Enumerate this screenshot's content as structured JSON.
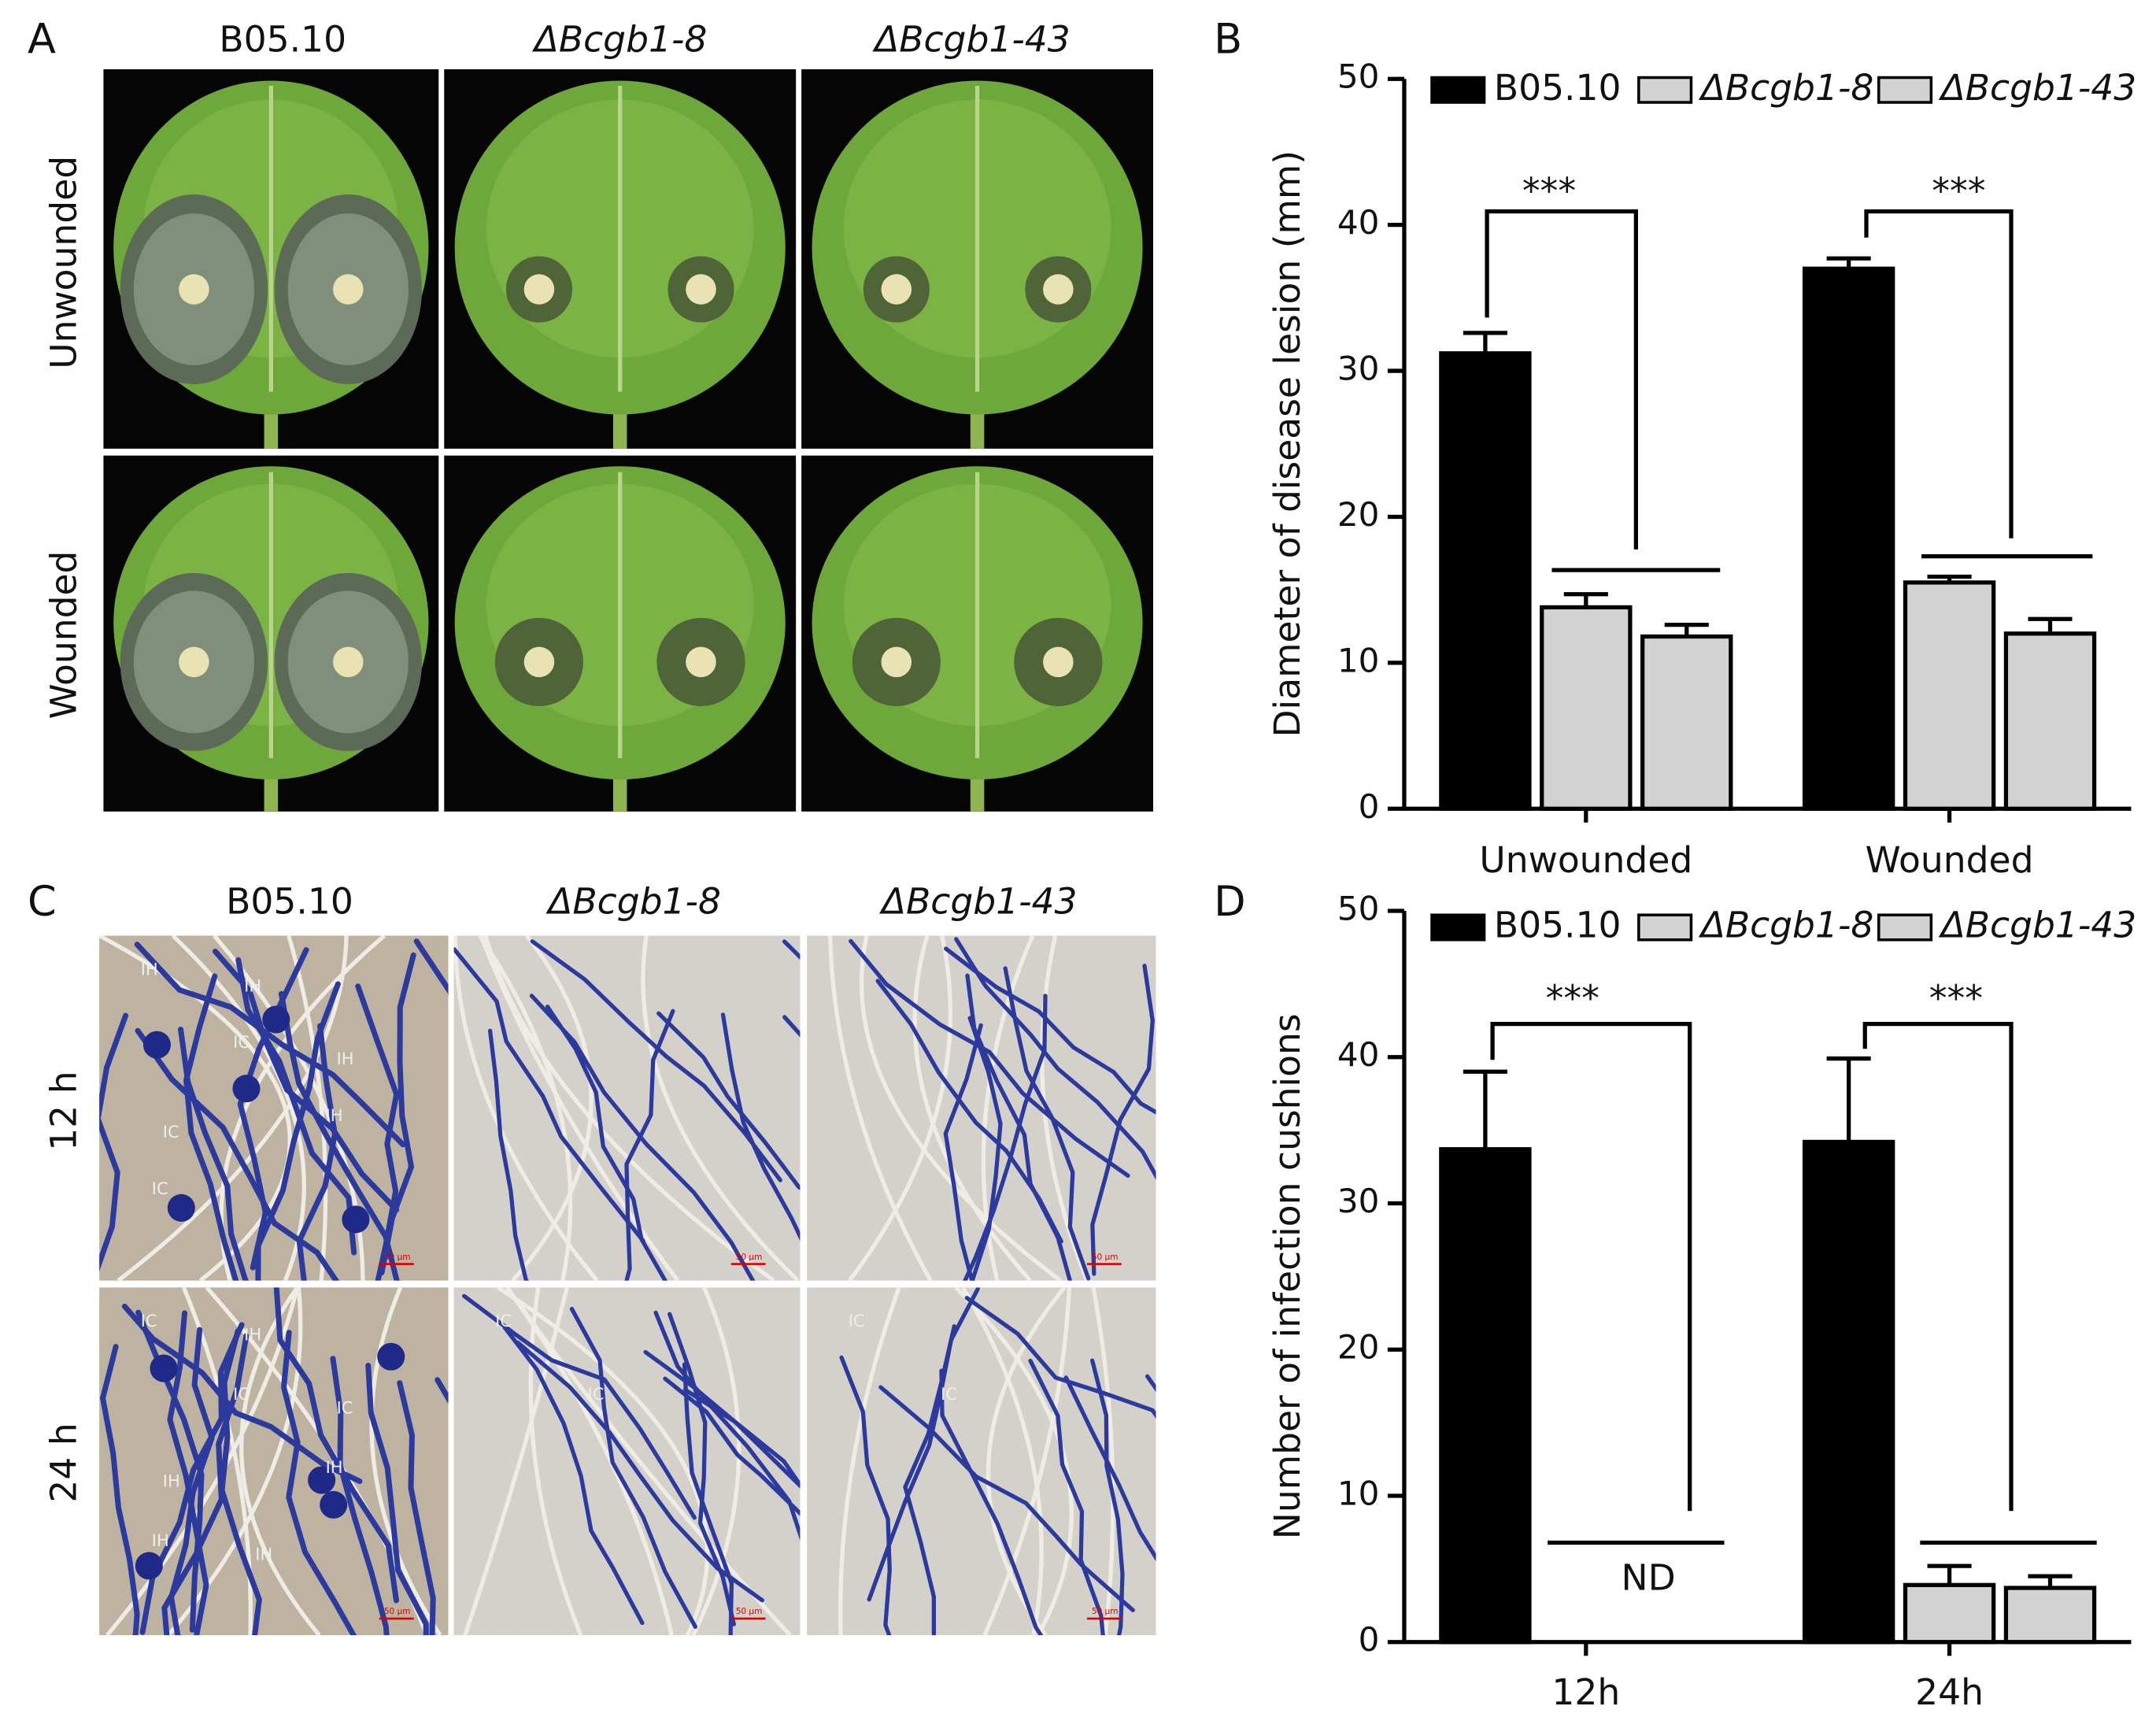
{
  "panel_labels": [
    "A",
    "B",
    "C",
    "D"
  ],
  "photo_panels": [
    {
      "columns": [
        "B05.10",
        "ΔBcgb1-8",
        "ΔBcgb1-43"
      ],
      "rows": [
        "Unwounded",
        "Wounded"
      ]
    },
    {
      "columns": [
        "B05.10",
        "ΔBcgb1-8",
        "ΔBcgb1-43"
      ],
      "rows": [
        "12 h",
        "24 h"
      ],
      "scale_bar": "50 μm",
      "markers": {
        "r0c0": [
          "IH",
          "IC",
          "IH",
          "IC",
          "IH",
          "IH",
          "IC"
        ],
        "r1c0": [
          "IC",
          "IC",
          "IH",
          "IH",
          "IH",
          "IC",
          "IH",
          "IH"
        ],
        "r1c1": [
          "IC",
          "IC"
        ],
        "r1c2": [
          "IC",
          "IC"
        ]
      }
    }
  ],
  "chart_data": [
    {
      "type": "bar",
      "y_label": "Diameter of disease lesion (mm)",
      "categories": [
        "Unwounded",
        "Wounded"
      ],
      "series": [
        {
          "name": "B05.10",
          "color": "#000000",
          "values": [
            31.2,
            37.0
          ],
          "errors": [
            1.4,
            0.7
          ]
        },
        {
          "name": "ΔBcgb1-8",
          "color": "#d3d3d3",
          "values": [
            13.8,
            15.5
          ],
          "errors": [
            0.9,
            0.4
          ]
        },
        {
          "name": "ΔBcgb1-43",
          "color": "#d3d3d3",
          "values": [
            11.8,
            12.0
          ],
          "errors": [
            0.8,
            1.0
          ]
        }
      ],
      "ylim": [
        0,
        50
      ],
      "yticks": [
        0,
        10,
        20,
        30,
        40,
        50
      ],
      "annotations": [
        "***",
        "***"
      ]
    },
    {
      "type": "bar",
      "y_label": "Number of infection cushions",
      "categories": [
        "12h",
        "24h"
      ],
      "series": [
        {
          "name": "B05.10",
          "color": "#000000",
          "values": [
            33.7,
            34.2
          ],
          "errors": [
            5.3,
            5.7
          ]
        },
        {
          "name": "ΔBcgb1-8",
          "color": "#d3d3d3",
          "values": [
            null,
            3.9
          ],
          "errors": [
            null,
            1.3
          ]
        },
        {
          "name": "ΔBcgb1-43",
          "color": "#d3d3d3",
          "values": [
            null,
            3.7
          ],
          "errors": [
            null,
            0.8
          ]
        }
      ],
      "ylim": [
        0,
        50
      ],
      "yticks": [
        0,
        10,
        20,
        30,
        40,
        50
      ],
      "annotations": [
        "***",
        "***",
        "ND"
      ]
    }
  ]
}
